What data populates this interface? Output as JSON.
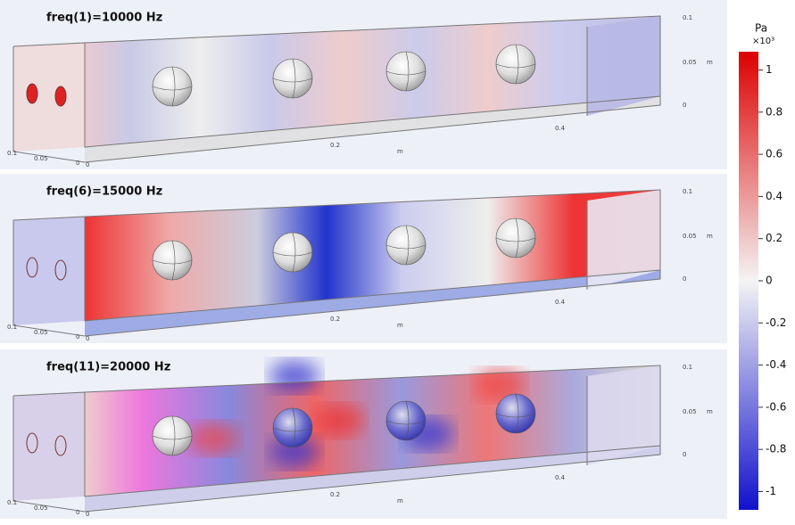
{
  "panels": [
    {
      "title": "freq(1)=10000 Hz",
      "z_ticks": [
        "0.1",
        "0.05",
        "0"
      ],
      "z_unit": "m",
      "x_ticks": [
        "0.2",
        "0.4"
      ],
      "x_unit": "m",
      "y_ticks": [
        "0.1",
        "0.05",
        "0"
      ],
      "origin": "0"
    },
    {
      "title": "freq(6)=15000 Hz",
      "z_ticks": [
        "0.1",
        "0.05",
        "0"
      ],
      "z_unit": "m",
      "x_ticks": [
        "0.2",
        "0.4"
      ],
      "x_unit": "m",
      "y_ticks": [
        "0.1",
        "0.05",
        "0"
      ],
      "origin": "0"
    },
    {
      "title": "freq(11)=20000 Hz",
      "z_ticks": [
        "0.1",
        "0.05",
        "0"
      ],
      "z_unit": "m",
      "x_ticks": [
        "0.2",
        "0.4"
      ],
      "x_unit": "m",
      "y_ticks": [
        "0.1",
        "0.05",
        "0"
      ],
      "origin": "0"
    }
  ],
  "colorbar": {
    "unit": "Pa",
    "multiplier": "×10³",
    "ticks": [
      1,
      0.8,
      0.6,
      0.4,
      0.2,
      0,
      -0.2,
      -0.4,
      -0.6,
      -0.8,
      -1
    ]
  }
}
